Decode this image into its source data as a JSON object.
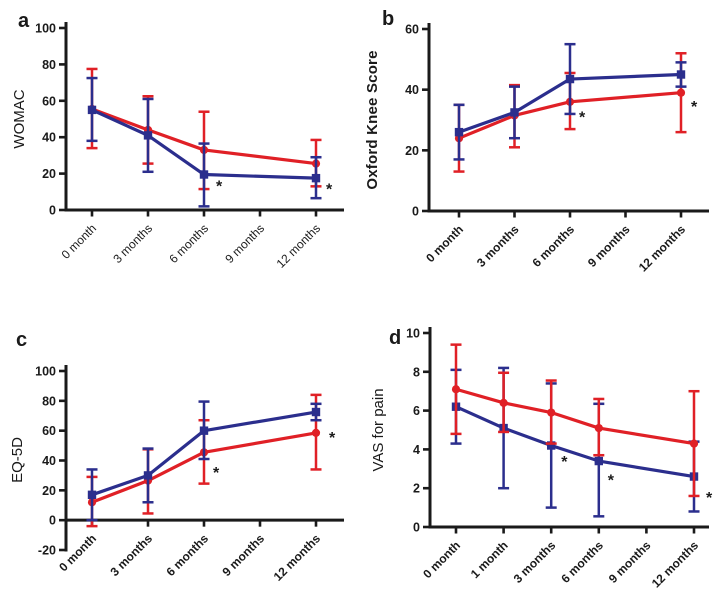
{
  "colors": {
    "red": "#e02026",
    "blue": "#2b2e8d",
    "axis": "#1a1a1a"
  },
  "chart_data": [
    {
      "panel": "a",
      "panel_label": "a",
      "type": "line",
      "error_bars": true,
      "title": "",
      "ylabel": "WOMAC",
      "xlabel": "",
      "ylim": [
        0,
        100
      ],
      "yticks": [
        0,
        20,
        40,
        60,
        80,
        100
      ],
      "x_axis_at": 0,
      "categories": [
        "0 month",
        "3 months",
        "6 months",
        "9 months",
        "12 months"
      ],
      "series": [
        {
          "name": "red",
          "color": "#e02026",
          "marker": "circle",
          "values": [
            55.5,
            44,
            33,
            null,
            25.5
          ],
          "err_low": [
            34,
            25.5,
            11.5,
            null,
            13
          ],
          "err_high": [
            77.5,
            62.5,
            54,
            null,
            38.5
          ]
        },
        {
          "name": "blue",
          "color": "#2b2e8d",
          "marker": "square",
          "values": [
            55,
            41,
            19.5,
            null,
            17.5
          ],
          "err_low": [
            38,
            21,
            2,
            null,
            6.5
          ],
          "err_high": [
            72.5,
            61,
            36.5,
            null,
            29
          ]
        }
      ],
      "annotations": [
        {
          "text": "*",
          "category_index": 2,
          "y": 14,
          "dx": 12
        },
        {
          "text": "*",
          "category_index": 4,
          "y": 12.5,
          "dx": 10
        }
      ]
    },
    {
      "panel": "b",
      "panel_label": "b",
      "type": "line",
      "error_bars": true,
      "title": "",
      "ylabel": "Oxford Knee Score",
      "xlabel": "",
      "ylim": [
        0,
        60
      ],
      "yticks": [
        0,
        20,
        40,
        60
      ],
      "x_axis_at": 0,
      "categories": [
        "0 month",
        "3 months",
        "6 months",
        "9 months",
        "12 months"
      ],
      "series": [
        {
          "name": "red",
          "color": "#e02026",
          "marker": "circle",
          "values": [
            24,
            31.5,
            36,
            null,
            39
          ],
          "err_low": [
            13,
            21,
            27,
            null,
            26
          ],
          "err_high": [
            35,
            41.5,
            45.5,
            null,
            52
          ]
        },
        {
          "name": "blue",
          "color": "#2b2e8d",
          "marker": "square",
          "values": [
            26,
            32.5,
            43.5,
            null,
            45
          ],
          "err_low": [
            17,
            24,
            32,
            null,
            41
          ],
          "err_high": [
            35,
            41,
            55,
            null,
            49
          ]
        }
      ],
      "annotations": [
        {
          "text": "*",
          "category_index": 2,
          "y": 31.5,
          "dx": 9
        },
        {
          "text": "*",
          "category_index": 4,
          "y": 35,
          "dx": 10
        }
      ]
    },
    {
      "panel": "c",
      "panel_label": "c",
      "type": "line",
      "error_bars": true,
      "title": "",
      "ylabel": "EQ-5D",
      "xlabel": "",
      "ylim": [
        -20,
        100
      ],
      "yticks": [
        -20,
        0,
        20,
        40,
        60,
        80,
        100
      ],
      "x_axis_at": 0,
      "categories": [
        "0 month",
        "3 months",
        "6 months",
        "9 months",
        "12 months"
      ],
      "series": [
        {
          "name": "red",
          "color": "#e02026",
          "marker": "circle",
          "values": [
            12,
            26.5,
            45.5,
            null,
            58.5
          ],
          "err_low": [
            -4,
            4.5,
            24.5,
            null,
            34
          ],
          "err_high": [
            29,
            47.5,
            67,
            null,
            84
          ]
        },
        {
          "name": "blue",
          "color": "#2b2e8d",
          "marker": "square",
          "values": [
            17,
            30,
            60,
            null,
            72.5
          ],
          "err_low": [
            0,
            12,
            41,
            null,
            67
          ],
          "err_high": [
            34,
            48,
            79.5,
            null,
            78
          ]
        }
      ],
      "annotations": [
        {
          "text": "*",
          "category_index": 2,
          "y": 33,
          "dx": 9
        },
        {
          "text": "*",
          "category_index": 4,
          "y": 56.5,
          "dx": 13
        }
      ]
    },
    {
      "panel": "d",
      "panel_label": "d",
      "type": "line",
      "error_bars": true,
      "title": "",
      "ylabel": "VAS for pain",
      "xlabel": "",
      "ylim": [
        0,
        10
      ],
      "yticks": [
        0,
        2,
        4,
        6,
        8,
        10
      ],
      "x_axis_at": 0,
      "categories": [
        "0 month",
        "1 month",
        "3 months",
        "6 months",
        "9 months",
        "12 months"
      ],
      "series": [
        {
          "name": "blue",
          "color": "#2b2e8d",
          "marker": "square",
          "values": [
            6.2,
            5.1,
            4.2,
            3.4,
            null,
            2.6
          ],
          "err_low": [
            4.3,
            2.0,
            1.0,
            0.55,
            null,
            0.8
          ],
          "err_high": [
            8.1,
            8.2,
            7.4,
            6.35,
            null,
            4.4
          ]
        },
        {
          "name": "red",
          "color": "#e02026",
          "marker": "circle",
          "values": [
            7.1,
            6.4,
            5.9,
            5.1,
            null,
            4.3
          ],
          "err_low": [
            4.8,
            4.9,
            4.3,
            3.7,
            null,
            1.6
          ],
          "err_high": [
            9.4,
            7.95,
            7.55,
            6.6,
            null,
            7.0
          ]
        }
      ],
      "annotations": [
        {
          "text": "*",
          "category_index": 2,
          "y": 3.45,
          "dx": 10
        },
        {
          "text": "*",
          "category_index": 3,
          "y": 2.5,
          "dx": 9
        },
        {
          "text": "*",
          "category_index": 5,
          "y": 1.6,
          "dx": 12
        }
      ]
    }
  ]
}
